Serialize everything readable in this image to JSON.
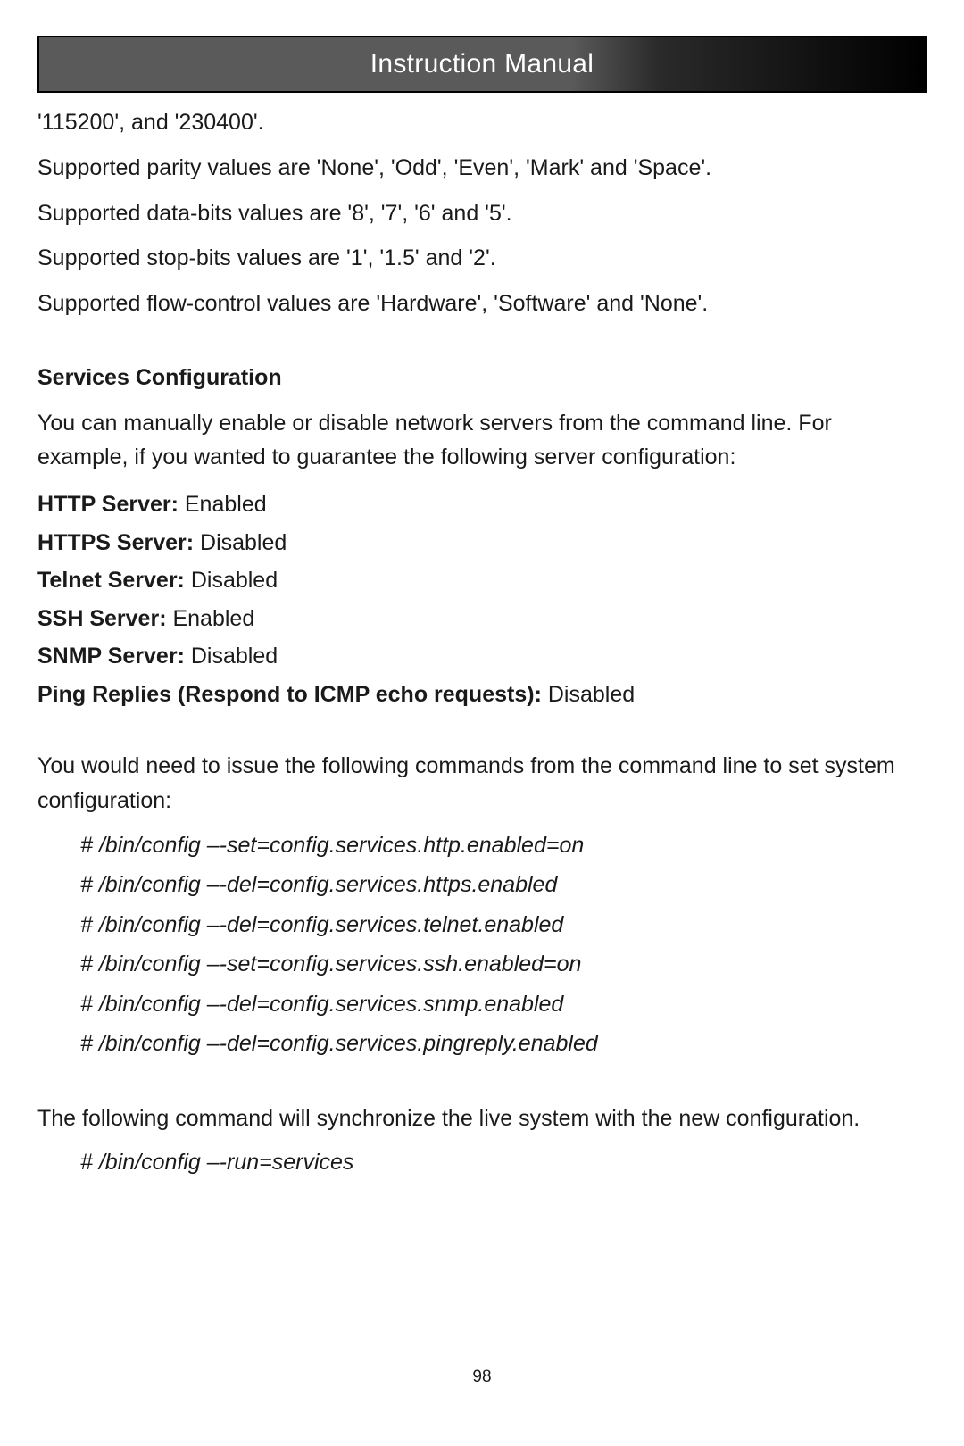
{
  "header": {
    "title": "Instruction Manual"
  },
  "intro_lines": [
    "'115200', and '230400'.",
    "Supported parity values are 'None', 'Odd', 'Even', 'Mark' and 'Space'.",
    "Supported data-bits values are '8', '7', '6' and '5'.",
    "Supported stop-bits values are '1', '1.5' and '2'.",
    "Supported flow-control values are 'Hardware', 'Software' and 'None'."
  ],
  "section": {
    "heading": "Services Configuration",
    "intro": "You can manually enable or disable network servers from the command line. For example,  if you wanted to guarantee the following server configuration:"
  },
  "servers": [
    {
      "label": "HTTP Server:",
      "value": " Enabled"
    },
    {
      "label": "HTTPS Server:",
      "value": " Disabled"
    },
    {
      "label": "Telnet Server:",
      "value": " Disabled"
    },
    {
      "label": "SSH Server:",
      "value": " Enabled"
    },
    {
      "label": "SNMP Server:",
      "value": " Disabled"
    },
    {
      "label": "Ping Replies (Respond to ICMP echo requests):",
      "value": " Disabled"
    }
  ],
  "commands_intro": "You would need to issue the following commands from the command line to set system configuration:",
  "commands": [
    "# /bin/config –-set=config.services.http.enabled=on",
    "# /bin/config –-del=config.services.https.enabled",
    "# /bin/config –-del=config.services.telnet.enabled",
    "# /bin/config –-set=config.services.ssh.enabled=on",
    "# /bin/config –-del=config.services.snmp.enabled",
    "# /bin/config –-del=config.services.pingreply.enabled"
  ],
  "sync_para": "The following command will synchronize the live system with the new configuration.",
  "sync_command": "# /bin/config –-run=services",
  "page_number": "98"
}
